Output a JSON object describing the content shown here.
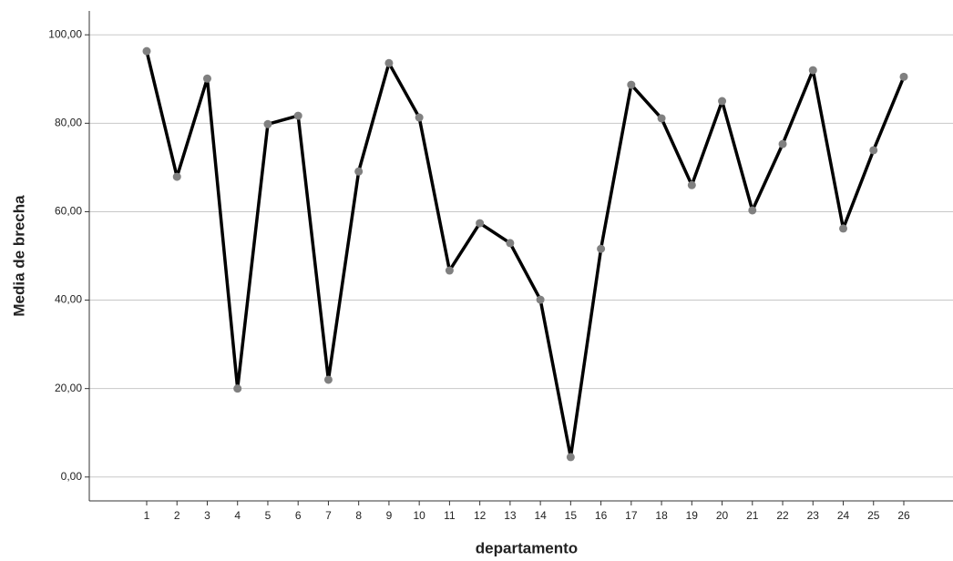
{
  "chart_data": {
    "type": "line",
    "x_label": "departamento",
    "y_label": "Media de brecha",
    "categories": [
      "1",
      "2",
      "3",
      "4",
      "5",
      "6",
      "7",
      "8",
      "9",
      "10",
      "11",
      "12",
      "13",
      "14",
      "15",
      "16",
      "17",
      "18",
      "19",
      "20",
      "21",
      "22",
      "23",
      "24",
      "25",
      "26"
    ],
    "series": [
      {
        "color": "#000000",
        "marker_color": "#808080",
        "values": [
          96.3,
          67.9,
          90.1,
          20.0,
          79.8,
          81.7,
          22.0,
          69.1,
          93.6,
          81.3,
          46.7,
          57.4,
          52.9,
          40.1,
          4.5,
          51.6,
          88.7,
          81.1,
          66.0,
          85.0,
          60.3,
          75.3,
          92.0,
          56.2,
          73.9,
          90.5
        ]
      }
    ],
    "ylim": [
      -5.4,
      105.4
    ],
    "yticks": [
      {
        "value": 0,
        "label": "0,00"
      },
      {
        "value": 20,
        "label": "20,00"
      },
      {
        "value": 40,
        "label": "40,00"
      },
      {
        "value": 60,
        "label": "60,00"
      },
      {
        "value": 80,
        "label": "80,00"
      },
      {
        "value": 100,
        "label": "100,00"
      }
    ],
    "grid": true
  }
}
